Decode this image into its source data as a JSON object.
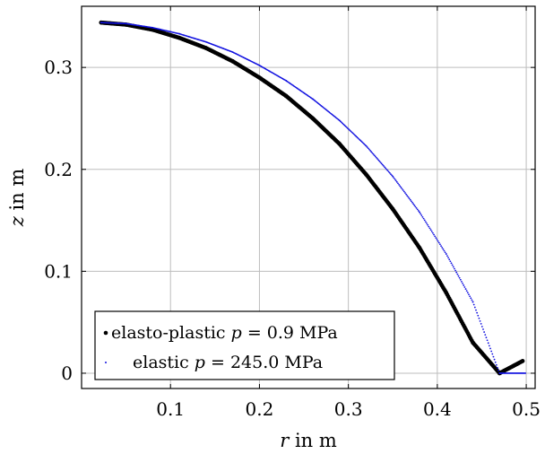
{
  "chart_data": {
    "type": "scatter",
    "title": "",
    "xlabel": {
      "var": "r",
      "rest": " in m"
    },
    "ylabel": {
      "var": "z",
      "rest": " in m"
    },
    "xlim": [
      0.0,
      0.51
    ],
    "ylim": [
      -0.015,
      0.36
    ],
    "xticks": [
      {
        "value": 0.1,
        "label": "0.1"
      },
      {
        "value": 0.2,
        "label": "0.2"
      },
      {
        "value": 0.3,
        "label": "0.3"
      },
      {
        "value": 0.4,
        "label": "0.4"
      },
      {
        "value": 0.5,
        "label": "0.5"
      }
    ],
    "yticks": [
      {
        "value": 0.0,
        "label": "0"
      },
      {
        "value": 0.1,
        "label": "0.1"
      },
      {
        "value": 0.2,
        "label": "0.2"
      },
      {
        "value": 0.3,
        "label": "0.3"
      }
    ],
    "grid": true,
    "legend_position": "bottom-left",
    "series": [
      {
        "name": {
          "prefix": "elasto-plastic ",
          "var": "p",
          "rest": " = 0.9 MPa"
        },
        "color": "#000000",
        "marker": "dot-large",
        "x": [
          0.022,
          0.05,
          0.08,
          0.11,
          0.14,
          0.17,
          0.2,
          0.23,
          0.26,
          0.29,
          0.32,
          0.35,
          0.38,
          0.41,
          0.44,
          0.47,
          0.496
        ],
        "y": [
          0.344,
          0.342,
          0.337,
          0.329,
          0.319,
          0.306,
          0.29,
          0.272,
          0.25,
          0.225,
          0.195,
          0.161,
          0.123,
          0.079,
          0.03,
          0.0,
          0.012
        ]
      },
      {
        "name": {
          "prefix": "elastic ",
          "var": "p",
          "rest": " = 245.0 MPa"
        },
        "color": "#1010e0",
        "marker": "dot-small",
        "x": [
          0.022,
          0.05,
          0.08,
          0.11,
          0.14,
          0.17,
          0.2,
          0.23,
          0.26,
          0.29,
          0.32,
          0.35,
          0.38,
          0.41,
          0.44,
          0.47,
          0.499
        ],
        "y": [
          0.344,
          0.343,
          0.339,
          0.333,
          0.325,
          0.315,
          0.302,
          0.287,
          0.269,
          0.248,
          0.223,
          0.193,
          0.158,
          0.117,
          0.07,
          0.0,
          0.0
        ]
      }
    ]
  }
}
